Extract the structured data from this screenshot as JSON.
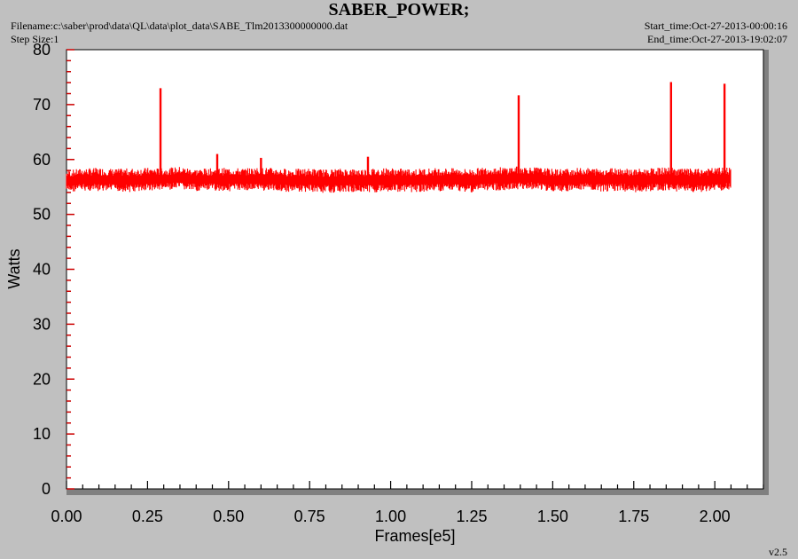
{
  "header": {
    "title": "SABER_POWER;",
    "filename": "Filename:c:\\saber\\prod\\data\\QL\\data\\plot_data\\SABE_Tlm2013300000000.dat",
    "step_size": "Step Size:1",
    "start_time": "Start_time:Oct-27-2013-00:00:16",
    "end_time": "End_time:Oct-27-2013-19:02:07",
    "version": "v2.5"
  },
  "colors": {
    "series": "#ff0000",
    "axis_ticks": "#cc0000",
    "background": "#c0c0c0",
    "plot_area": "#ffffff"
  },
  "chart_data": {
    "type": "line",
    "title": "SABER_POWER;",
    "xlabel": "Frames[e5]",
    "ylabel": "Watts",
    "xlim": [
      0,
      2.15
    ],
    "ylim": [
      0,
      80
    ],
    "x_ticks": [
      "0.00",
      "0.25",
      "0.50",
      "0.75",
      "1.00",
      "1.25",
      "1.50",
      "1.75",
      "2.00"
    ],
    "y_ticks": [
      "0",
      "10",
      "20",
      "30",
      "40",
      "50",
      "60",
      "70",
      "80"
    ],
    "grid": false,
    "series": [
      {
        "band": {
          "x": [
            0.0,
            0.05,
            0.1,
            0.15,
            0.2,
            0.25,
            0.3,
            0.35,
            0.4,
            0.45,
            0.5,
            0.55,
            0.6,
            0.65,
            0.7,
            0.75,
            0.8,
            0.85,
            0.9,
            0.95,
            1.0,
            1.05,
            1.1,
            1.15,
            1.2,
            1.25,
            1.3,
            1.35,
            1.4,
            1.45,
            1.5,
            1.55,
            1.6,
            1.65,
            1.7,
            1.75,
            1.8,
            1.85,
            1.9,
            1.95,
            2.0,
            2.05
          ],
          "low": [
            54.0,
            54.3,
            54.1,
            54.2,
            54.0,
            54.3,
            54.4,
            54.5,
            54.2,
            54.3,
            54.2,
            54.4,
            54.3,
            54.2,
            54.0,
            54.1,
            53.9,
            54.0,
            54.1,
            54.0,
            54.2,
            54.0,
            54.1,
            54.2,
            54.3,
            54.0,
            54.4,
            54.3,
            54.5,
            54.6,
            54.0,
            54.2,
            54.4,
            54.1,
            54.3,
            54.0,
            54.2,
            54.3,
            54.1,
            54.0,
            54.2,
            54.5
          ],
          "high": [
            58.0,
            58.4,
            58.5,
            58.3,
            58.4,
            58.5,
            58.4,
            58.7,
            58.3,
            58.4,
            58.5,
            58.4,
            58.6,
            58.4,
            58.3,
            58.4,
            58.2,
            58.4,
            58.3,
            58.4,
            58.5,
            58.3,
            58.4,
            58.5,
            58.4,
            58.3,
            58.7,
            58.6,
            58.8,
            58.6,
            58.3,
            58.4,
            58.5,
            58.4,
            58.6,
            58.3,
            58.4,
            58.6,
            58.4,
            58.3,
            58.5,
            58.6
          ]
        },
        "spikes": [
          {
            "x": 0.29,
            "y": 73.0
          },
          {
            "x": 0.465,
            "y": 61.0
          },
          {
            "x": 0.6,
            "y": 60.3
          },
          {
            "x": 0.93,
            "y": 60.5
          },
          {
            "x": 1.395,
            "y": 71.7
          },
          {
            "x": 1.865,
            "y": 74.1
          },
          {
            "x": 2.03,
            "y": 73.8
          }
        ]
      }
    ]
  }
}
